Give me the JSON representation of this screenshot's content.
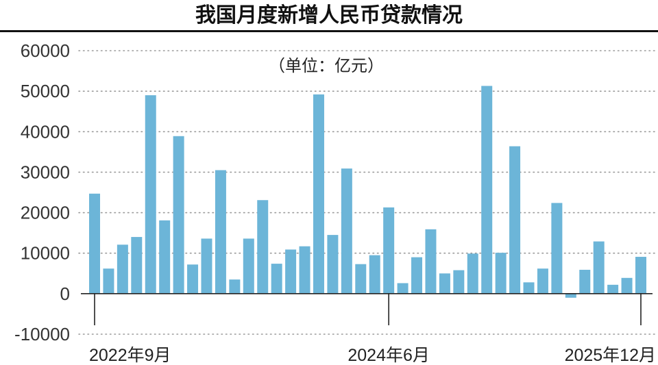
{
  "chart_data": {
    "type": "bar",
    "title": "我国月度新增人民币贷款情况",
    "unit_label": "（单位：亿元）",
    "values": [
      24700,
      6200,
      12100,
      14000,
      49000,
      18100,
      38900,
      7200,
      13600,
      30500,
      3500,
      13600,
      23100,
      7400,
      10900,
      11700,
      49200,
      14500,
      30900,
      7300,
      9500,
      21300,
      2600,
      9000,
      15900,
      5000,
      5800,
      9900,
      51300,
      10100,
      36400,
      2800,
      6200,
      22400,
      -1000,
      5900,
      12900,
      2200,
      3900,
      9100
    ],
    "ylim": [
      -10000,
      60000
    ],
    "y_ticks": [
      60000,
      50000,
      40000,
      30000,
      20000,
      10000,
      0,
      -10000
    ],
    "x_ticks": [
      {
        "index": 0,
        "label": "2022年9月"
      },
      {
        "index": 21,
        "label": "2024年6月"
      },
      {
        "index": 39,
        "label": "2025年12月"
      }
    ],
    "grid": true,
    "bar_color": "#6cb5d8"
  }
}
